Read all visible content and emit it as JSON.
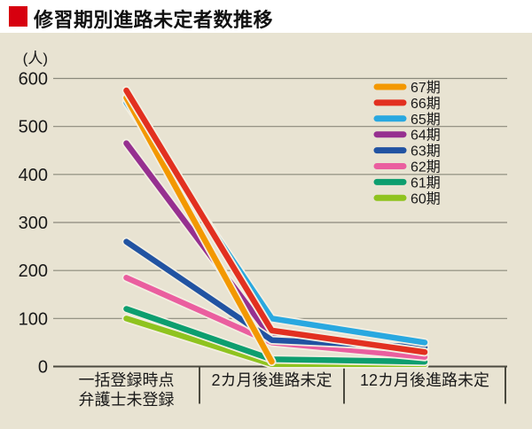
{
  "header": {
    "title": "修習期別進路未定者数推移",
    "accent_color": "#D7000F"
  },
  "chart_data": {
    "type": "line",
    "title": "修習期別進路未定者数推移",
    "unit_label": "(人)",
    "categories": [
      "一括登録時点\n弁護士未登録",
      "2カ月後進路未定",
      "12カ月後進路未定"
    ],
    "ylabel": "人",
    "ylim": [
      0,
      600
    ],
    "y_ticks": [
      0,
      100,
      200,
      300,
      400,
      500,
      600
    ],
    "grid": true,
    "legend_position": "top-right",
    "series": [
      {
        "name": "67期",
        "color": "#F39800",
        "values": [
          560,
          10,
          null
        ]
      },
      {
        "name": "66期",
        "color": "#E23020",
        "values": [
          575,
          75,
          30
        ]
      },
      {
        "name": "65期",
        "color": "#29A8E0",
        "values": [
          550,
          100,
          50
        ]
      },
      {
        "name": "64期",
        "color": "#963090",
        "values": [
          465,
          60,
          35
        ]
      },
      {
        "name": "63期",
        "color": "#2153A2",
        "values": [
          260,
          55,
          40
        ]
      },
      {
        "name": "62期",
        "color": "#EA5E9F",
        "values": [
          185,
          50,
          20
        ]
      },
      {
        "name": "61期",
        "color": "#0D9E6F",
        "values": [
          120,
          15,
          10
        ]
      },
      {
        "name": "60期",
        "color": "#8FC31F",
        "values": [
          100,
          5,
          5
        ]
      }
    ],
    "colors": {
      "background": "#E8E3D2",
      "grid": "#8A897B",
      "axis": "#4A493E",
      "text": "#1A1A1A",
      "halo": "#F3EFE2"
    }
  }
}
